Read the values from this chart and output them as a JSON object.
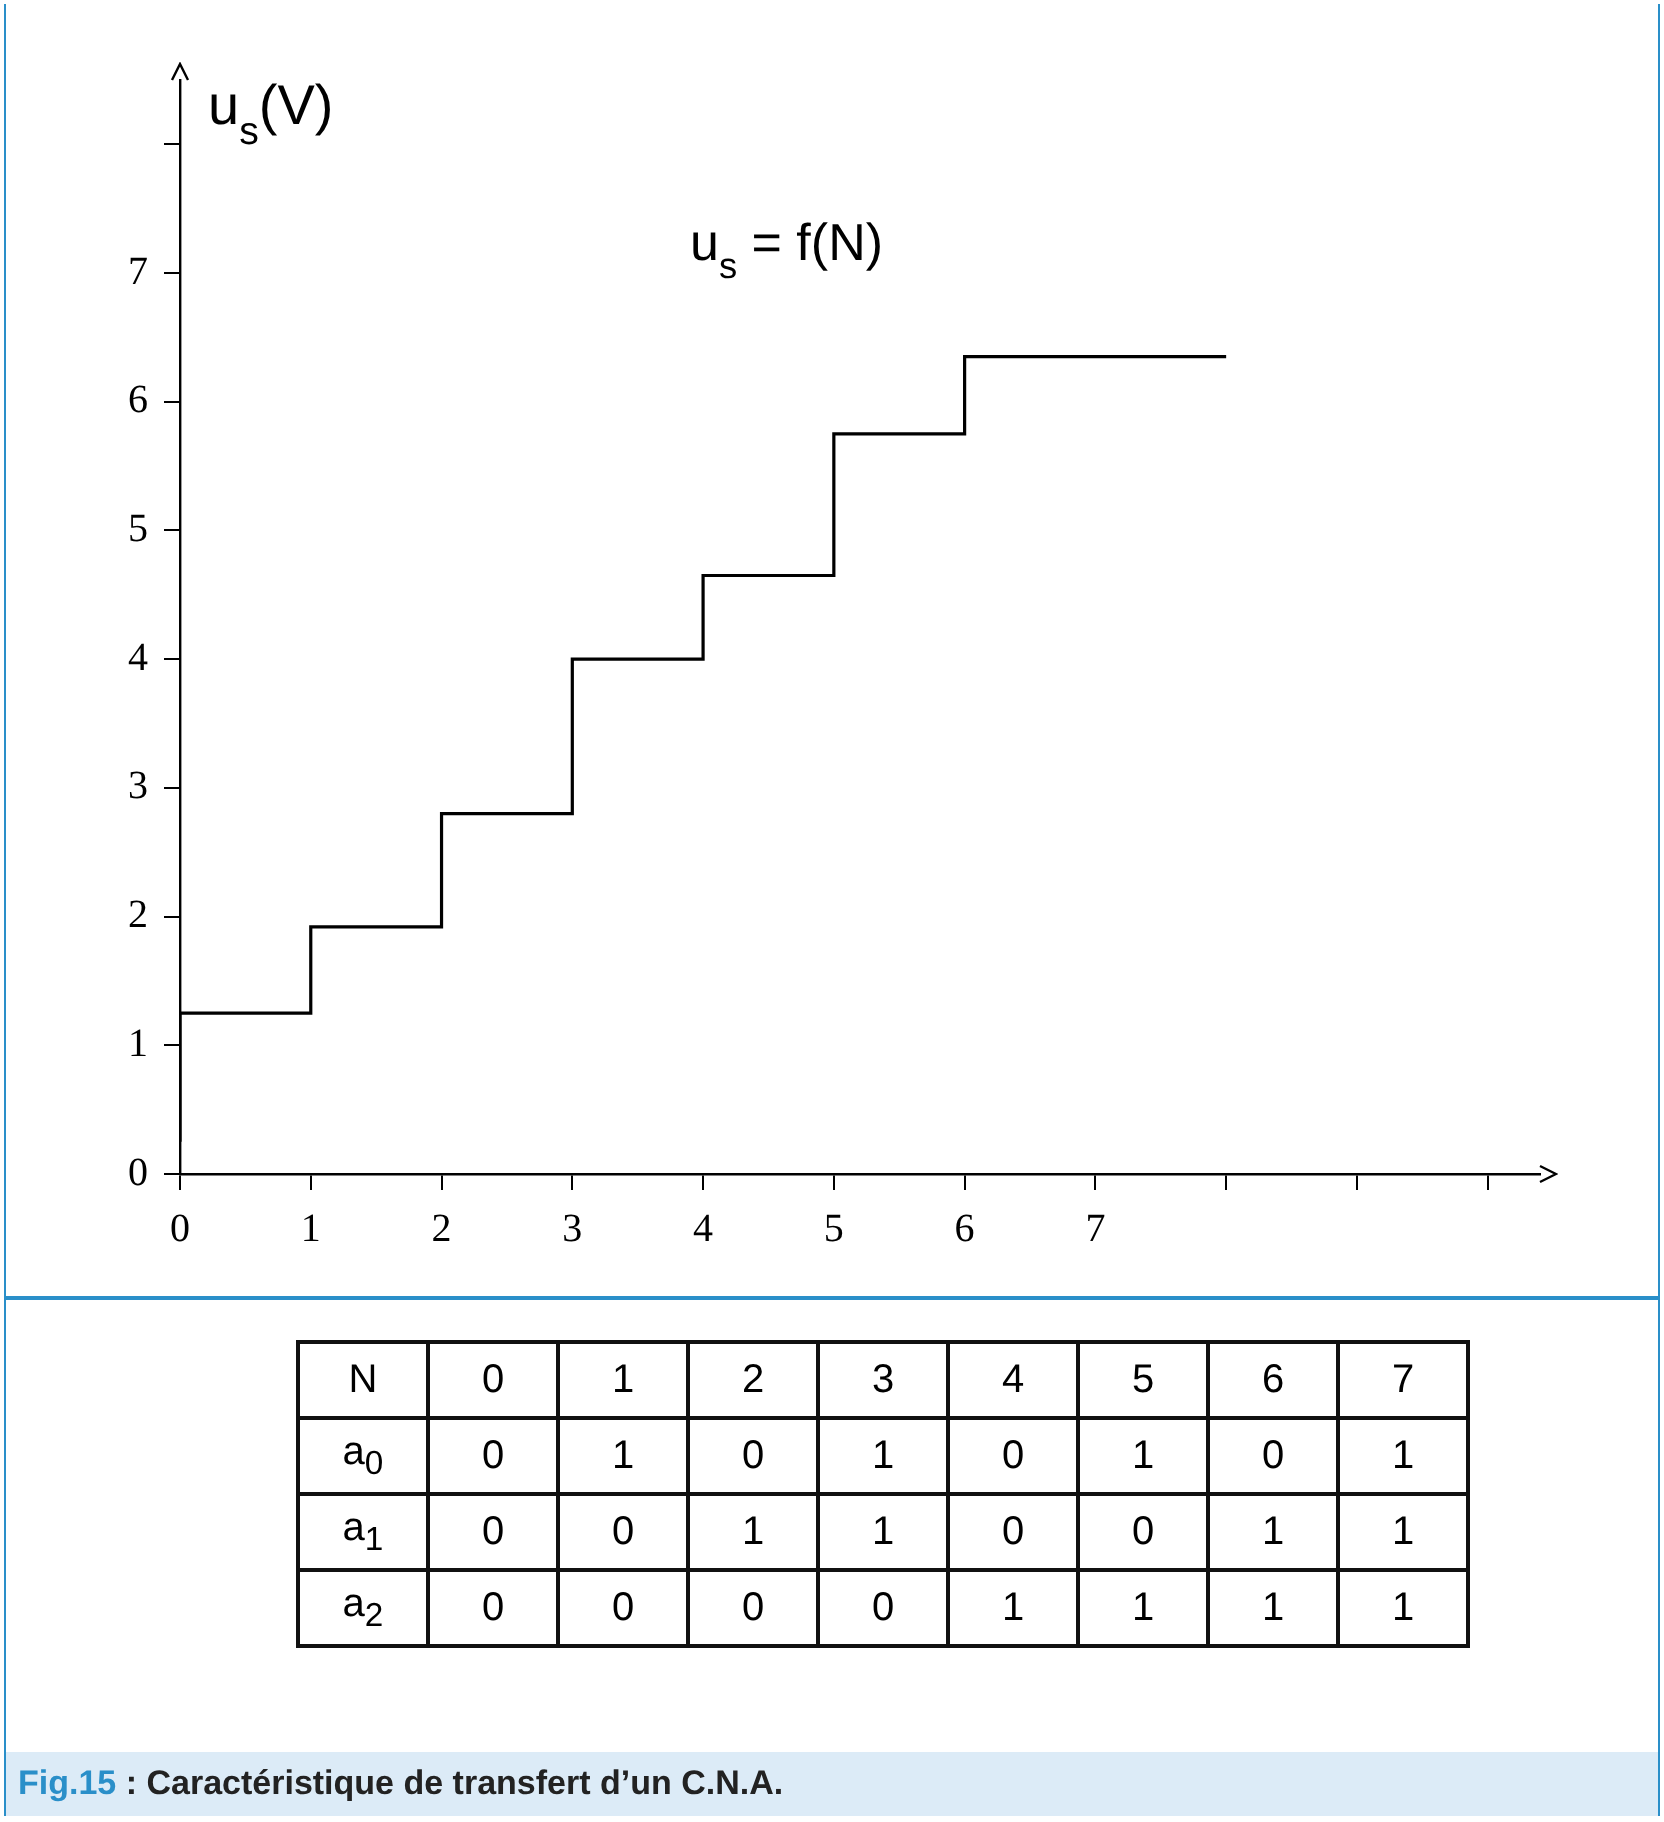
{
  "chart_data": [
    {
      "type": "step",
      "ylabel": "u$_{s}$(V)",
      "annotations": [
        "u$_{s}$ = f(N)"
      ],
      "x": [
        0,
        1,
        2,
        3,
        4,
        5,
        6,
        7,
        8
      ],
      "values": [
        0.25,
        1.25,
        1.92,
        2.8,
        4.0,
        4.65,
        5.75,
        6.35,
        6.35
      ],
      "color": "#000000",
      "xlim": [
        0,
        10.4
      ],
      "ylim": [
        0,
        8.5
      ],
      "xticks": [
        0,
        1,
        2,
        3,
        4,
        5,
        6,
        7,
        {
          "value": 8,
          "label": null
        },
        {
          "value": 9,
          "label": null
        },
        {
          "value": 10,
          "label": null
        }
      ],
      "yticks": [
        0,
        1,
        2,
        3,
        4,
        5,
        6,
        7,
        {
          "value": 8,
          "label": null
        }
      ],
      "grid": false,
      "legend": false,
      "marker": "none"
    },
    {
      "type": "heatmap",
      "xlabel": "N",
      "categories": [
        "0",
        "1",
        "2",
        "3",
        "4",
        "5",
        "6",
        "7"
      ],
      "y_categories": [
        "a$_{0}$",
        "a$_{1}$",
        "a$_{2}$"
      ],
      "cells": [
        [
          0,
          1,
          0,
          1,
          0,
          1,
          0,
          1
        ],
        [
          0,
          0,
          1,
          1,
          0,
          0,
          1,
          1
        ],
        [
          0,
          0,
          0,
          0,
          1,
          1,
          1,
          1
        ]
      ],
      "data_labels": true,
      "annotations": [
        "Fig.15 : Caractéristique de transfert d’un C.N.A."
      ]
    }
  ]
}
